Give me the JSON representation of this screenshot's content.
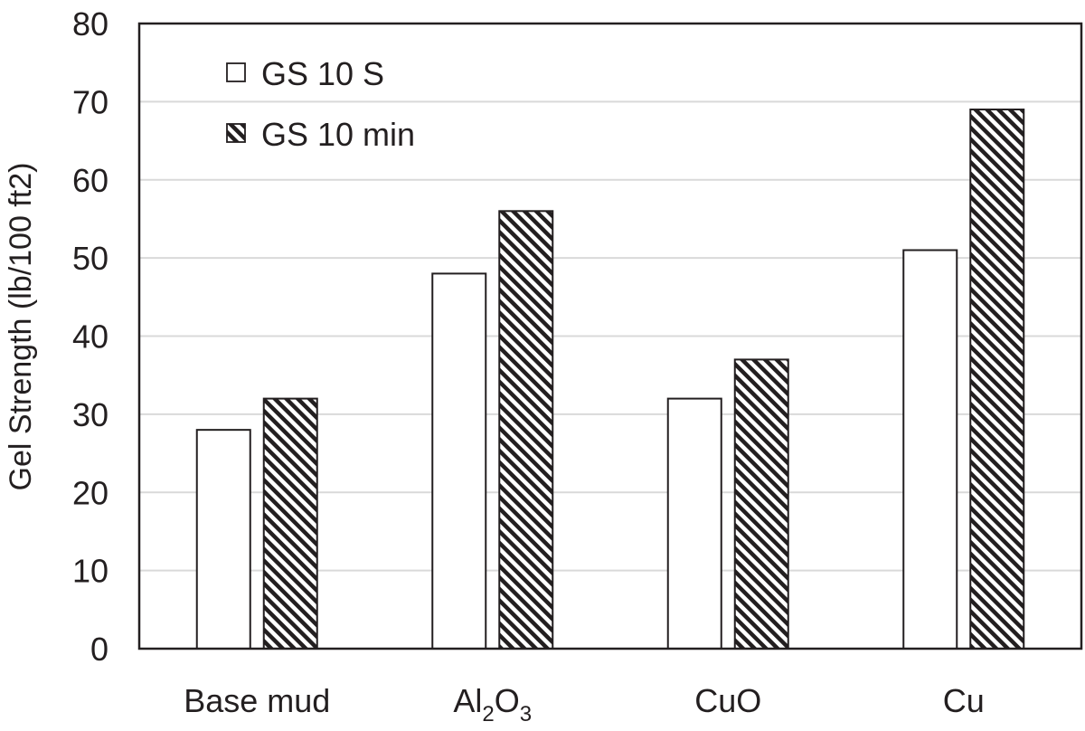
{
  "chart_data": {
    "type": "bar",
    "categories": [
      "Base mud",
      "Al2O3",
      "CuO",
      "Cu"
    ],
    "category_display": [
      {
        "text": "Base mud"
      },
      {
        "parts": [
          {
            "t": "Al",
            "sub": false
          },
          {
            "t": "2",
            "sub": true
          },
          {
            "t": "O",
            "sub": false
          },
          {
            "t": "3",
            "sub": true
          }
        ]
      },
      {
        "text": "CuO"
      },
      {
        "text": "Cu"
      }
    ],
    "series": [
      {
        "name": "GS 10 S",
        "values": [
          28,
          48,
          32,
          51
        ],
        "fill": "white"
      },
      {
        "name": "GS 10 min",
        "values": [
          32,
          56,
          37,
          69
        ],
        "fill": "diagonal-hatch"
      }
    ],
    "title": "",
    "xlabel": "",
    "ylabel": "Gel Strength (lb/100 ft2)",
    "ylim": [
      0,
      80
    ],
    "yticks": [
      0,
      10,
      20,
      30,
      40,
      50,
      60,
      70,
      80
    ],
    "grid": true,
    "legend_position": "top-left",
    "colors": {
      "bar_stroke": "#231f20",
      "grid": "#d9d9d9",
      "text": "#231f20",
      "hatch": "#231f20"
    }
  }
}
